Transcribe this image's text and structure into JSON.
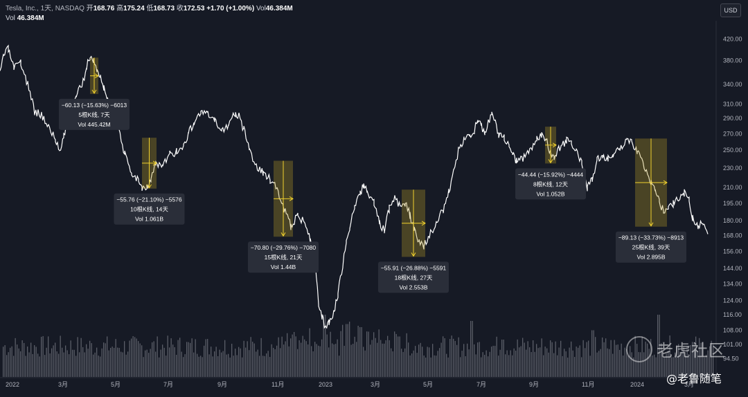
{
  "header": {
    "symbol": "Tesla, Inc., 1天, NASDAQ",
    "open_label": "开",
    "open": "168.76",
    "high_label": "高",
    "high": "175.24",
    "low_label": "低",
    "low": "168.73",
    "close_label": "收",
    "close": "172.53",
    "change": "+1.70 (+1.00%)",
    "vol_label": "Vol",
    "vol": "46.384M",
    "vol_row_label": "Vol",
    "vol_row_value": "46.384M"
  },
  "currency_button": "USD",
  "watermark": {
    "brand": "老虎社区",
    "author": "@老鲁随笔"
  },
  "colors": {
    "background": "#161a25",
    "price_line": "#ffffff",
    "volume": "#9598a1",
    "highlight": "#f2d22e",
    "highlight_fill": "rgba(186,160,36,0.32)",
    "annotation_bg": "#2a2e39",
    "axis_text": "#b2b5be"
  },
  "chart_data": {
    "type": "line",
    "title": "",
    "series": [
      {
        "values": [
          [
            0,
            355
          ],
          [
            5,
            390
          ],
          [
            12,
            400
          ],
          [
            20,
            365
          ],
          [
            30,
            375
          ],
          [
            40,
            340
          ],
          [
            50,
            300
          ],
          [
            60,
            295
          ],
          [
            70,
            280
          ],
          [
            80,
            262
          ],
          [
            86,
            250
          ],
          [
            92,
            268
          ],
          [
            100,
            290
          ],
          [
            110,
            320
          ],
          [
            120,
            345
          ],
          [
            125,
            370
          ],
          [
            130,
            385
          ],
          [
            135,
            380
          ],
          [
            140,
            365
          ],
          [
            145,
            350
          ],
          [
            150,
            335
          ],
          [
            155,
            320
          ],
          [
            160,
            305
          ],
          [
            170,
            285
          ],
          [
            180,
            245
          ],
          [
            190,
            225
          ],
          [
            200,
            218
          ],
          [
            205,
            210
          ],
          [
            212,
            212
          ],
          [
            218,
            218
          ],
          [
            225,
            235
          ],
          [
            235,
            232
          ],
          [
            245,
            245
          ],
          [
            255,
            248
          ],
          [
            265,
            255
          ],
          [
            272,
            270
          ],
          [
            280,
            285
          ],
          [
            290,
            298
          ],
          [
            300,
            295
          ],
          [
            310,
            285
          ],
          [
            320,
            275
          ],
          [
            330,
            282
          ],
          [
            340,
            298
          ],
          [
            345,
            292
          ],
          [
            352,
            275
          ],
          [
            360,
            250
          ],
          [
            370,
            232
          ],
          [
            380,
            225
          ],
          [
            390,
            218
          ],
          [
            400,
            210
          ],
          [
            410,
            190
          ],
          [
            420,
            175
          ],
          [
            430,
            185
          ],
          [
            440,
            178
          ],
          [
            448,
            165
          ],
          [
            455,
            150
          ],
          [
            460,
            120
          ],
          [
            465,
            115
          ],
          [
            470,
            108
          ],
          [
            475,
            112
          ],
          [
            482,
            118
          ],
          [
            488,
            128
          ],
          [
            495,
            145
          ],
          [
            500,
            165
          ],
          [
            505,
            175
          ],
          [
            512,
            190
          ],
          [
            520,
            205
          ],
          [
            525,
            212
          ],
          [
            530,
            205
          ],
          [
            540,
            195
          ],
          [
            548,
            178
          ],
          [
            555,
            172
          ],
          [
            562,
            190
          ],
          [
            570,
            200
          ],
          [
            578,
            192
          ],
          [
            585,
            195
          ],
          [
            592,
            185
          ],
          [
            598,
            172
          ],
          [
            605,
            162
          ],
          [
            612,
            160
          ],
          [
            620,
            168
          ],
          [
            630,
            178
          ],
          [
            640,
            190
          ],
          [
            648,
            205
          ],
          [
            655,
            225
          ],
          [
            662,
            250
          ],
          [
            670,
            262
          ],
          [
            678,
            265
          ],
          [
            685,
            275
          ],
          [
            690,
            290
          ],
          [
            695,
            280
          ],
          [
            700,
            272
          ],
          [
            710,
            295
          ],
          [
            715,
            285
          ],
          [
            720,
            270
          ],
          [
            728,
            265
          ],
          [
            735,
            255
          ],
          [
            740,
            245
          ],
          [
            746,
            238
          ],
          [
            755,
            240
          ],
          [
            765,
            250
          ],
          [
            775,
            262
          ],
          [
            782,
            268
          ],
          [
            788,
            262
          ],
          [
            795,
            248
          ],
          [
            800,
            242
          ],
          [
            810,
            255
          ],
          [
            818,
            262
          ],
          [
            825,
            258
          ],
          [
            832,
            248
          ],
          [
            840,
            235
          ],
          [
            848,
            210
          ],
          [
            855,
            218
          ],
          [
            862,
            240
          ],
          [
            870,
            245
          ],
          [
            878,
            240
          ],
          [
            885,
            245
          ],
          [
            895,
            250
          ],
          [
            905,
            260
          ],
          [
            912,
            258
          ],
          [
            920,
            248
          ],
          [
            930,
            232
          ],
          [
            940,
            215
          ],
          [
            946,
            210
          ],
          [
            952,
            195
          ],
          [
            958,
            188
          ],
          [
            965,
            190
          ],
          [
            972,
            195
          ],
          [
            980,
            200
          ],
          [
            988,
            205
          ],
          [
            995,
            198
          ],
          [
            1000,
            182
          ],
          [
            1008,
            175
          ],
          [
            1015,
            178
          ],
          [
            1022,
            172
          ]
        ]
      }
    ],
    "x_ticks": [
      "2022",
      "3月",
      "5月",
      "7月",
      "9月",
      "11月",
      "2023",
      "3月",
      "5月",
      "7月",
      "9月",
      "11月",
      "2024",
      "3月"
    ],
    "y_ticks": [
      "420.00",
      "380.00",
      "340.00",
      "310.00",
      "290.00",
      "270.00",
      "250.00",
      "230.00",
      "210.00",
      "195.00",
      "180.00",
      "168.00",
      "156.00",
      "144.00",
      "134.00",
      "124.00",
      "116.00",
      "108.00",
      "101.00",
      "94.50"
    ],
    "y_scale": "log",
    "ylim": [
      92,
      440
    ],
    "grid": false,
    "volume": {
      "label": "Vol",
      "spikes": [
        [
          468,
          1.0
        ],
        [
          500,
          0.85
        ],
        [
          520,
          0.8
        ],
        [
          575,
          0.65
        ],
        [
          680,
          0.9
        ],
        [
          950,
          1.0
        ],
        [
          855,
          0.75
        ],
        [
          725,
          0.6
        ]
      ]
    },
    "annotations": [
      {
        "x_start": 130,
        "x_end": 142,
        "y_top": 385,
        "y_bottom": 325,
        "line1": "−60.13 (−15.63%) −6013",
        "line2": "5根K线, 7天",
        "line3": "Vol 445.42M"
      },
      {
        "x_start": 205,
        "x_end": 226,
        "y_top": 265,
        "y_bottom": 209,
        "line1": "−55.76 (−21.10%) −5576",
        "line2": "10根K线, 14天",
        "line3": "Vol 1.061B"
      },
      {
        "x_start": 395,
        "x_end": 423,
        "y_top": 238,
        "y_bottom": 167,
        "line1": "−70.80 (−29.76%) −7080",
        "line2": "15根K线, 21天",
        "line3": "Vol 1.44B"
      },
      {
        "x_start": 580,
        "x_end": 614,
        "y_top": 208,
        "y_bottom": 152,
        "line1": "−55.91 (−26.88%) −5591",
        "line2": "18根K线, 27天",
        "line3": "Vol 2.553B"
      },
      {
        "x_start": 787,
        "x_end": 803,
        "y_top": 279,
        "y_bottom": 235,
        "line1": "−44.44 (−15.92%) −4444",
        "line2": "8根K线, 12天",
        "line3": "Vol 1.052B"
      },
      {
        "x_start": 917,
        "x_end": 963,
        "y_top": 264,
        "y_bottom": 175,
        "line1": "−89.13 (−33.73%) −8913",
        "line2": "25根K线, 39天",
        "line3": "Vol 2.895B"
      }
    ]
  }
}
